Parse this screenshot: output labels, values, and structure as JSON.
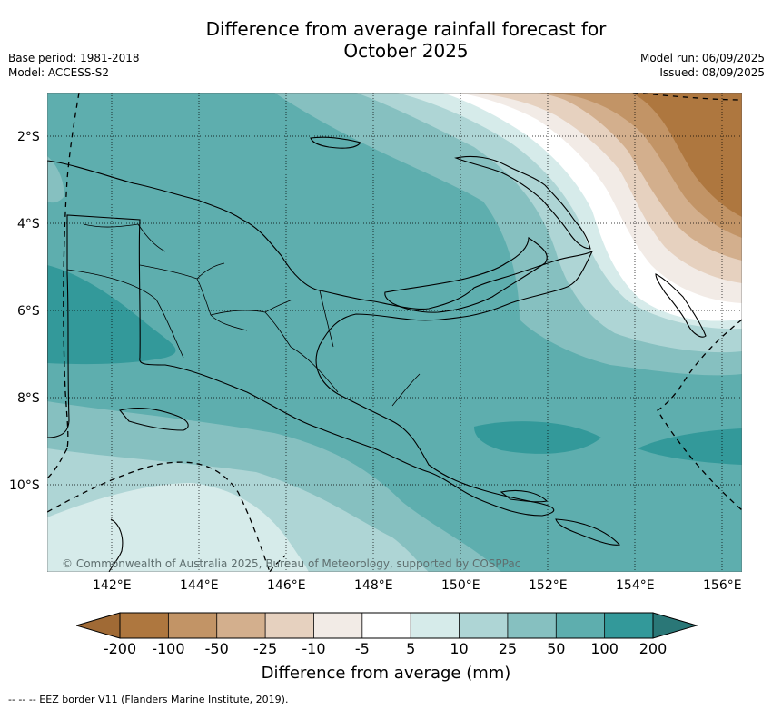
{
  "header": {
    "title_line1": "Difference from average rainfall forecast for",
    "title_line2": "October 2025",
    "base_period": "Base period: 1981-2018",
    "model": "Model: ACCESS-S2",
    "model_run": "Model run: 06/09/2025",
    "issued": "Issued: 08/09/2025"
  },
  "map": {
    "lat_labels": [
      "2°S",
      "4°S",
      "6°S",
      "8°S",
      "10°S"
    ],
    "lon_labels": [
      "142°E",
      "144°E",
      "146°E",
      "148°E",
      "150°E",
      "152°E",
      "154°E",
      "156°E"
    ],
    "copyright": "© Commonwealth of Australia 2025, Bureau of Meteorology, supported by COSPPac",
    "colors": {
      "land_background": "#5eaeae",
      "wet_strong": "#33999a",
      "wet_moderate": "#86c0c0",
      "wet_light": "#aed5d5",
      "wet_slight": "#d6ebea",
      "neutral": "#ffffff",
      "dry_slight": "#f2ebe6",
      "dry_light": "#e6d1bf",
      "dry_moderate": "#d3af8d",
      "dry_strong": "#c29466",
      "dry_very": "#ae773f"
    }
  },
  "colorbar": {
    "tick_labels": [
      "-200",
      "-100",
      "-50",
      "-25",
      "-10",
      "-5",
      "5",
      "10",
      "25",
      "50",
      "100",
      "200"
    ],
    "segment_colors": [
      "#ae773f",
      "#c29466",
      "#d3af8d",
      "#e6d1bf",
      "#f2ebe6",
      "#ffffff",
      "#d6ebea",
      "#aed5d5",
      "#86c0c0",
      "#5eaeae",
      "#33999a"
    ],
    "extend_low_color": "#a06a35",
    "extend_high_color": "#2a7777",
    "title": "Difference from average (mm)"
  },
  "footer": {
    "legend_text": "--  --  -- EEZ border V11 (Flanders Marine Institute, 2019)."
  }
}
